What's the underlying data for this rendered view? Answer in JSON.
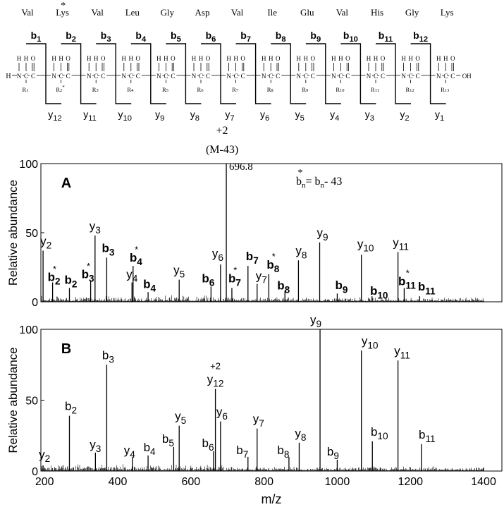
{
  "sequence": {
    "residues": [
      "Val",
      "Lys",
      "Val",
      "Leu",
      "Gly",
      "Asp",
      "Val",
      "Ile",
      "Glu",
      "Val",
      "His",
      "Gly",
      "Lys"
    ],
    "modified_marker": "*",
    "b_ions": [
      "b1",
      "b2",
      "b3",
      "b4",
      "b5",
      "b6",
      "b7",
      "b8",
      "b9",
      "b10",
      "b11",
      "b12"
    ],
    "y_ions": [
      "y12",
      "y11",
      "y10",
      "y9",
      "y8",
      "y7",
      "y6",
      "y5",
      "y4",
      "y3",
      "y2",
      "y1"
    ],
    "n_terminus": "H",
    "c_terminus": "OH",
    "side_chains": [
      "R1",
      "R2*",
      "R3",
      "R4",
      "R5",
      "R6",
      "R7",
      "R8",
      "R9",
      "R10",
      "R11",
      "R12",
      "R13"
    ]
  },
  "chart_data": [
    {
      "type": "bar",
      "panel_label": "A",
      "ylabel": "Relative abundance",
      "xlim": [
        190,
        1450
      ],
      "ylim": [
        0,
        100
      ],
      "yticks": [
        0,
        50,
        100
      ],
      "formula": "b*n = bn - 43",
      "top_peak_label": "+2",
      "top_peak_sublabel": "(M-43)",
      "top_peak_value": "696.8",
      "peaks": [
        {
          "x": 196,
          "y": 37,
          "label": "y2"
        },
        {
          "x": 222,
          "y": 14,
          "label": "b*2"
        },
        {
          "x": 268,
          "y": 10,
          "label": "b2"
        },
        {
          "x": 326,
          "y": 15,
          "label": "b*3"
        },
        {
          "x": 338,
          "y": 48,
          "label": "y3"
        },
        {
          "x": 370,
          "y": 32,
          "label": "b3"
        },
        {
          "x": 439,
          "y": 14,
          "label": "y4"
        },
        {
          "x": 442,
          "y": 26,
          "label": "b*4"
        },
        {
          "x": 483,
          "y": 7,
          "label": "b4"
        },
        {
          "x": 568,
          "y": 16,
          "label": "y5"
        },
        {
          "x": 655,
          "y": 11,
          "label": "b6"
        },
        {
          "x": 681,
          "y": 27,
          "label": "y6"
        },
        {
          "x": 696.8,
          "y": 100,
          "label": ""
        },
        {
          "x": 712,
          "y": 10,
          "label": "b*7"
        },
        {
          "x": 756,
          "y": 26,
          "label": "b7"
        },
        {
          "x": 781,
          "y": 13,
          "label": "y7"
        },
        {
          "x": 813,
          "y": 20,
          "label": "b*8"
        },
        {
          "x": 857,
          "y": 8,
          "label": "b8"
        },
        {
          "x": 894,
          "y": 30,
          "label": "y8"
        },
        {
          "x": 952,
          "y": 43,
          "label": "y9"
        },
        {
          "x": 1000,
          "y": 6,
          "label": "b9"
        },
        {
          "x": 1066,
          "y": 34,
          "label": "y10"
        },
        {
          "x": 1095,
          "y": 4,
          "label": "b10"
        },
        {
          "x": 1166,
          "y": 36,
          "label": "y11"
        },
        {
          "x": 1183,
          "y": 10,
          "label": "b*11"
        },
        {
          "x": 1225,
          "y": 4,
          "label": "b11"
        }
      ]
    },
    {
      "type": "bar",
      "panel_label": "B",
      "ylabel": "Relative abundance",
      "xlabel": "m/z",
      "xlim": [
        190,
        1450
      ],
      "ylim": [
        0,
        100
      ],
      "yticks": [
        0,
        50,
        100
      ],
      "xticks": [
        200,
        400,
        600,
        800,
        1000,
        1200,
        1400
      ],
      "peaks": [
        {
          "x": 196,
          "y": 4,
          "label": "y2"
        },
        {
          "x": 268,
          "y": 39,
          "label": "b2"
        },
        {
          "x": 339,
          "y": 13,
          "label": "y3"
        },
        {
          "x": 370,
          "y": 75,
          "label": "b3"
        },
        {
          "x": 440,
          "y": 10,
          "label": "y4"
        },
        {
          "x": 483,
          "y": 11,
          "label": "b4"
        },
        {
          "x": 553,
          "y": 17,
          "label": "b5"
        },
        {
          "x": 568,
          "y": 32,
          "label": "y5"
        },
        {
          "x": 662,
          "y": 14,
          "label": "b6"
        },
        {
          "x": 667,
          "y": 58,
          "label": "+2 y12"
        },
        {
          "x": 681,
          "y": 35,
          "label": "y6"
        },
        {
          "x": 756,
          "y": 10,
          "label": "b7"
        },
        {
          "x": 781,
          "y": 30,
          "label": "y7"
        },
        {
          "x": 868,
          "y": 10,
          "label": "b8"
        },
        {
          "x": 896,
          "y": 20,
          "label": "y8"
        },
        {
          "x": 953,
          "y": 100,
          "label": "y9"
        },
        {
          "x": 1000,
          "y": 8,
          "label": "b9"
        },
        {
          "x": 1066,
          "y": 85,
          "label": "y10"
        },
        {
          "x": 1096,
          "y": 21,
          "label": "b10"
        },
        {
          "x": 1166,
          "y": 78,
          "label": "y11"
        },
        {
          "x": 1230,
          "y": 19,
          "label": "b11"
        }
      ]
    }
  ]
}
